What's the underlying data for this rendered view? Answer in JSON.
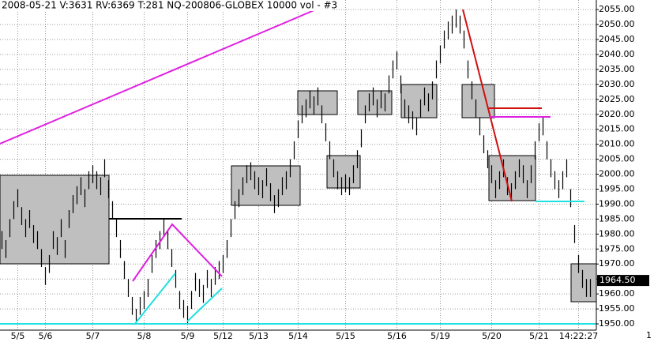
{
  "chart_data": {
    "type": "hilo",
    "title": "2008-05-21  V:3631  RV:6369  T:281  NQ-200806-GLOBEX  10000 vol - #3",
    "categories": [
      null,
      null,
      null,
      null,
      "5/5",
      null,
      null,
      null,
      null,
      null,
      null,
      "5/6",
      null,
      null,
      null,
      null,
      null,
      null,
      null,
      null,
      null,
      null,
      null,
      "5/7",
      null,
      null,
      null,
      null,
      null,
      null,
      null,
      null,
      null,
      null,
      null,
      null,
      "5/8",
      null,
      null,
      null,
      null,
      null,
      null,
      null,
      null,
      null,
      null,
      "5/9",
      null,
      null,
      null,
      null,
      null,
      null,
      null,
      null,
      "5/12",
      null,
      null,
      null,
      null,
      null,
      null,
      null,
      null,
      "5/13",
      null,
      null,
      null,
      null,
      null,
      null,
      null,
      null,
      null,
      "5/14",
      null,
      null,
      null,
      null,
      null,
      null,
      null,
      null,
      null,
      null,
      null,
      "5/15",
      null,
      null,
      null,
      null,
      null,
      null,
      null,
      null,
      null,
      null,
      null,
      null,
      "5/16",
      null,
      null,
      null,
      null,
      null,
      null,
      null,
      null,
      null,
      null,
      "5/19",
      null,
      null,
      null,
      null,
      null,
      null,
      null,
      null,
      null,
      null,
      null,
      null,
      "5/20",
      null,
      null,
      null,
      null,
      null,
      null,
      null,
      null,
      null,
      null,
      null,
      "5/21",
      null,
      null,
      null,
      null,
      null,
      null,
      null,
      null,
      null,
      "14:22:27",
      null,
      null,
      null
    ],
    "high": [
      1981,
      1978,
      1985,
      1991,
      1995,
      1989,
      1985,
      1988,
      1983,
      1981,
      1975,
      1969,
      1973,
      1981,
      1979,
      1985,
      1978,
      1988,
      1993,
      1996,
      1999,
      1995,
      2001,
      2003,
      2001,
      1999,
      2005,
      1998,
      1991,
      1985,
      1978,
      1971,
      1965,
      1959,
      1955,
      1959,
      1961,
      1965,
      1973,
      1978,
      1981,
      1985,
      1981,
      1975,
      1968,
      1961,
      1958,
      1956,
      1961,
      1967,
      1965,
      1963,
      1968,
      1965,
      1969,
      1971,
      1973,
      1978,
      1985,
      1991,
      1995,
      1999,
      2003,
      2004,
      2001,
      1999,
      1998,
      2002,
      1997,
      1993,
      1995,
      1999,
      2001,
      2005,
      2011,
      2018,
      2023,
      2025,
      2028,
      2026,
      2029,
      2023,
      2017,
      2011,
      2005,
      2001,
      1999,
      2000,
      1999,
      2003,
      2008,
      2015,
      2023,
      2027,
      2029,
      2025,
      2028,
      2027,
      2033,
      2038,
      2041,
      2033,
      2025,
      2023,
      2021,
      2019,
      2025,
      2029,
      2027,
      2031,
      2038,
      2043,
      2048,
      2051,
      2053,
      2055,
      2053,
      2048,
      2038,
      2031,
      2025,
      2019,
      2013,
      2008,
      2003,
      1998,
      2001,
      2005,
      1999,
      1997,
      2001,
      2005,
      2003,
      1998,
      2003,
      2011,
      2017,
      2019,
      2011,
      2005,
      2001,
      1998,
      2001,
      2005,
      1995,
      1983,
      1973,
      1968,
      1965,
      1965
    ],
    "low": [
      1975,
      1972,
      1979,
      1985,
      1989,
      1983,
      1979,
      1982,
      1977,
      1975,
      1969,
      1963,
      1967,
      1975,
      1973,
      1979,
      1972,
      1982,
      1987,
      1990,
      1993,
      1989,
      1995,
      1997,
      1995,
      1993,
      1999,
      1992,
      1985,
      1979,
      1972,
      1965,
      1959,
      1953,
      1951,
      1953,
      1955,
      1959,
      1967,
      1972,
      1975,
      1979,
      1975,
      1969,
      1962,
      1955,
      1952,
      1950,
      1955,
      1961,
      1959,
      1957,
      1962,
      1959,
      1963,
      1965,
      1967,
      1972,
      1979,
      1985,
      1989,
      1993,
      1997,
      1998,
      1995,
      1993,
      1992,
      1996,
      1991,
      1987,
      1989,
      1993,
      1995,
      1999,
      2005,
      2012,
      2017,
      2019,
      2022,
      2020,
      2023,
      2017,
      2011,
      2005,
      1999,
      1995,
      1993,
      1994,
      1993,
      1997,
      2002,
      2009,
      2017,
      2021,
      2023,
      2019,
      2022,
      2021,
      2027,
      2032,
      2035,
      2027,
      2019,
      2017,
      2015,
      2013,
      2019,
      2023,
      2021,
      2025,
      2032,
      2037,
      2042,
      2045,
      2047,
      2049,
      2047,
      2042,
      2032,
      2025,
      2019,
      2013,
      2007,
      2002,
      1997,
      1992,
      1995,
      1999,
      1993,
      1991,
      1995,
      1999,
      1997,
      1992,
      1997,
      2005,
      2011,
      2013,
      2005,
      1999,
      1995,
      1992,
      1995,
      1999,
      1989,
      1977,
      1967,
      1962,
      1959,
      1959
    ],
    "color": "#000000",
    "ylim": [
      1947.9,
      2058.2
    ],
    "yticks": [
      {
        "value": 1950,
        "label": "1950.00"
      },
      {
        "value": 1955,
        "label": "1955.00"
      },
      {
        "value": 1960,
        "label": "1960.00"
      },
      {
        "value": 1965,
        "label": "1965.00"
      },
      {
        "value": 1970,
        "label": "1970.00"
      },
      {
        "value": 1975,
        "label": "1975.00"
      },
      {
        "value": 1980,
        "label": "1980.00"
      },
      {
        "value": 1985,
        "label": "1985.00"
      },
      {
        "value": 1990,
        "label": "1990.00"
      },
      {
        "value": 1995,
        "label": "1995.00"
      },
      {
        "value": 2000,
        "label": "2000.00"
      },
      {
        "value": 2005,
        "label": "2005.00"
      },
      {
        "value": 2010,
        "label": "2010.00"
      },
      {
        "value": 2015,
        "label": "2015.00"
      },
      {
        "value": 2020,
        "label": "2020.00"
      },
      {
        "value": 2025,
        "label": "2025.00"
      },
      {
        "value": 2030,
        "label": "2030.00"
      },
      {
        "value": 2035,
        "label": "2035.00"
      },
      {
        "value": 2040,
        "label": "2040.00"
      },
      {
        "value": 2045,
        "label": "2045.00"
      },
      {
        "value": 2050,
        "label": "2050.00"
      },
      {
        "value": 2055,
        "label": "2055.00"
      }
    ],
    "last_price": {
      "value": 1964.5,
      "label": "1964.50"
    },
    "corner_label": "1",
    "grid": true
  }
}
